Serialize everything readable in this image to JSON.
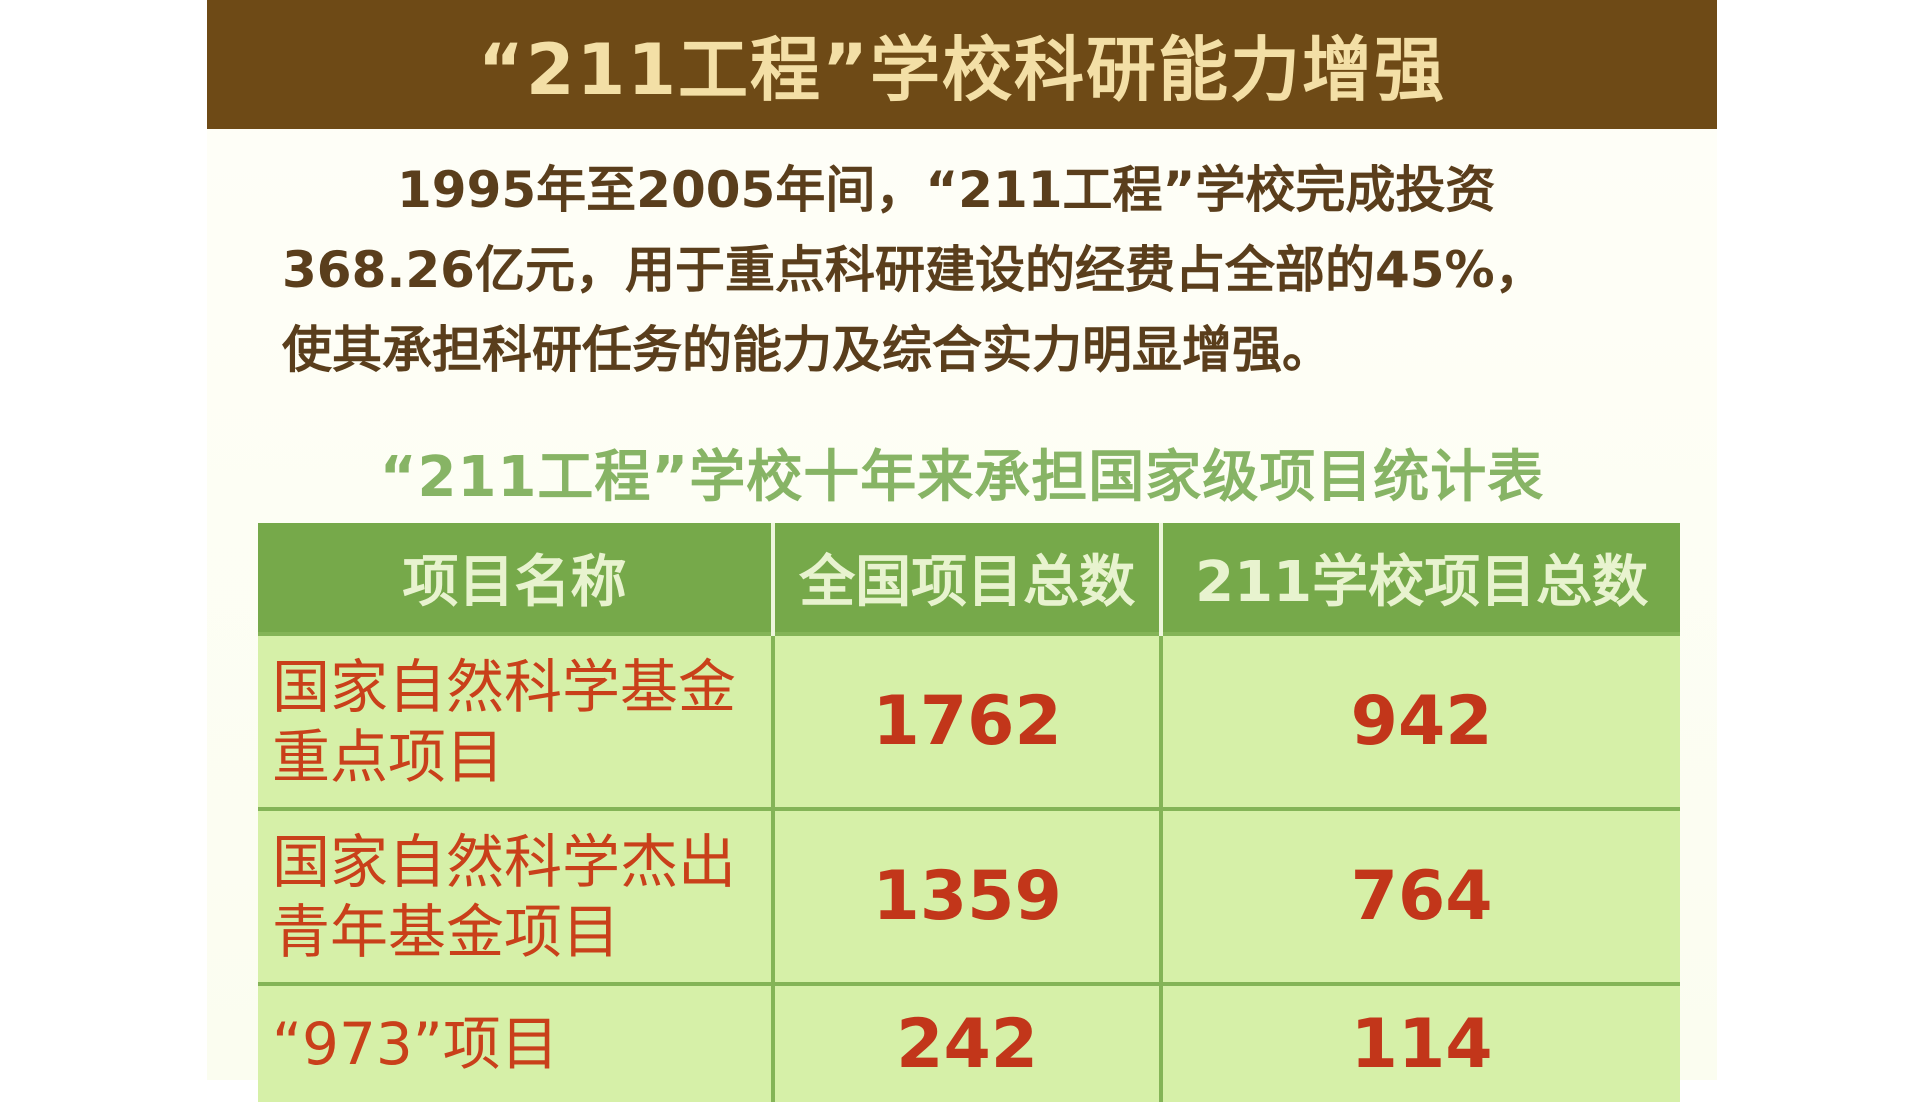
{
  "header": {
    "title": "“211工程”学校科研能力增强"
  },
  "intro": {
    "lines": [
      "1995年至2005年间，“211工程”学校完成投资",
      "368.26亿元，用于重点科研建设的经费占全部的45%，",
      "使其承担科研任务的能力及综合实力明显增强。"
    ]
  },
  "table": {
    "title": "“211工程”学校十年来承担国家级项目统计表",
    "columns": [
      "项目名称",
      "全国项目总数",
      "211学校项目总数"
    ],
    "rows": [
      {
        "name": "国家自然科学基金重点项目",
        "national": "1762",
        "school211": "942"
      },
      {
        "name": "国家自然科学杰出青年基金项目",
        "national": "1359",
        "school211": "764"
      },
      {
        "name": "“973”项目",
        "national": "242",
        "school211": "114"
      }
    ]
  },
  "colors": {
    "banner": "#6e4a16",
    "header_row": "#76a94a",
    "cell": "#d6f0a8",
    "value_text": "#c2361a"
  }
}
